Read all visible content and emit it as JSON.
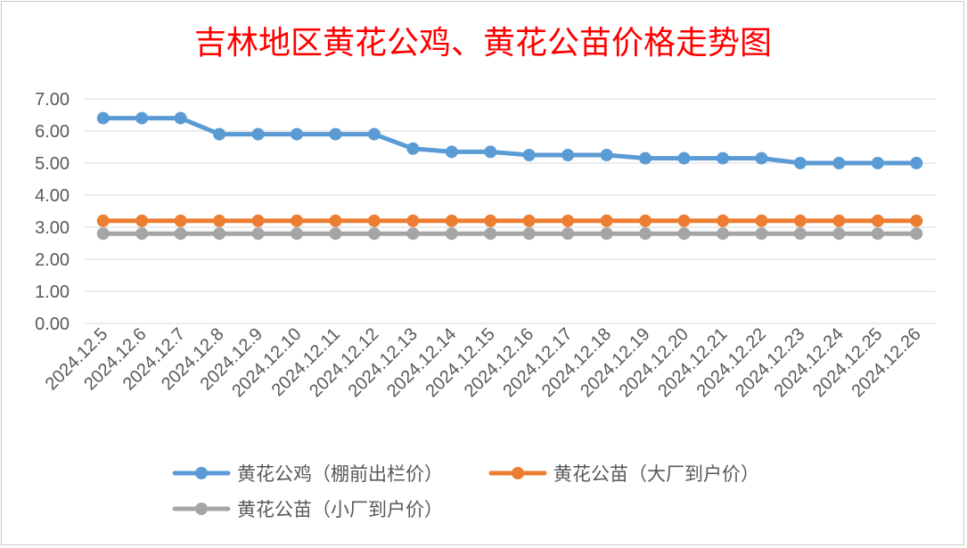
{
  "chart_data": {
    "type": "line",
    "title": "吉林地区黄花公鸡、黄花公苗价格走势图",
    "title_color": "#ff0000",
    "xlabel": "",
    "ylabel": "",
    "ylim": [
      0,
      7
    ],
    "y_ticks": [
      "0.00",
      "1.00",
      "2.00",
      "3.00",
      "4.00",
      "5.00",
      "6.00",
      "7.00"
    ],
    "grid": true,
    "legend_position": "bottom",
    "categories": [
      "2024.12.5",
      "2024.12.6",
      "2024.12.7",
      "2024.12.8",
      "2024.12.9",
      "2024.12.10",
      "2024.12.11",
      "2024.12.12",
      "2024.12.13",
      "2024.12.14",
      "2024.12.15",
      "2024.12.16",
      "2024.12.17",
      "2024.12.18",
      "2024.12.19",
      "2024.12.20",
      "2024.12.21",
      "2024.12.22",
      "2024.12.23",
      "2024.12.24",
      "2024.12.25",
      "2024.12.26"
    ],
    "series": [
      {
        "name": "黄花公鸡（棚前出栏价）",
        "color": "#5b9bd5",
        "values": [
          6.4,
          6.4,
          6.4,
          5.9,
          5.9,
          5.9,
          5.9,
          5.9,
          5.45,
          5.35,
          5.35,
          5.25,
          5.25,
          5.25,
          5.15,
          5.15,
          5.15,
          5.15,
          5.0,
          5.0,
          5.0,
          5.0
        ]
      },
      {
        "name": "黄花公苗（大厂到户价）",
        "color": "#ed7d31",
        "values": [
          3.2,
          3.2,
          3.2,
          3.2,
          3.2,
          3.2,
          3.2,
          3.2,
          3.2,
          3.2,
          3.2,
          3.2,
          3.2,
          3.2,
          3.2,
          3.2,
          3.2,
          3.2,
          3.2,
          3.2,
          3.2,
          3.2
        ]
      },
      {
        "name": "黄花公苗（小厂到户价）",
        "color": "#a5a5a5",
        "values": [
          2.8,
          2.8,
          2.8,
          2.8,
          2.8,
          2.8,
          2.8,
          2.8,
          2.8,
          2.8,
          2.8,
          2.8,
          2.8,
          2.8,
          2.8,
          2.8,
          2.8,
          2.8,
          2.8,
          2.8,
          2.8,
          2.8
        ]
      }
    ]
  }
}
